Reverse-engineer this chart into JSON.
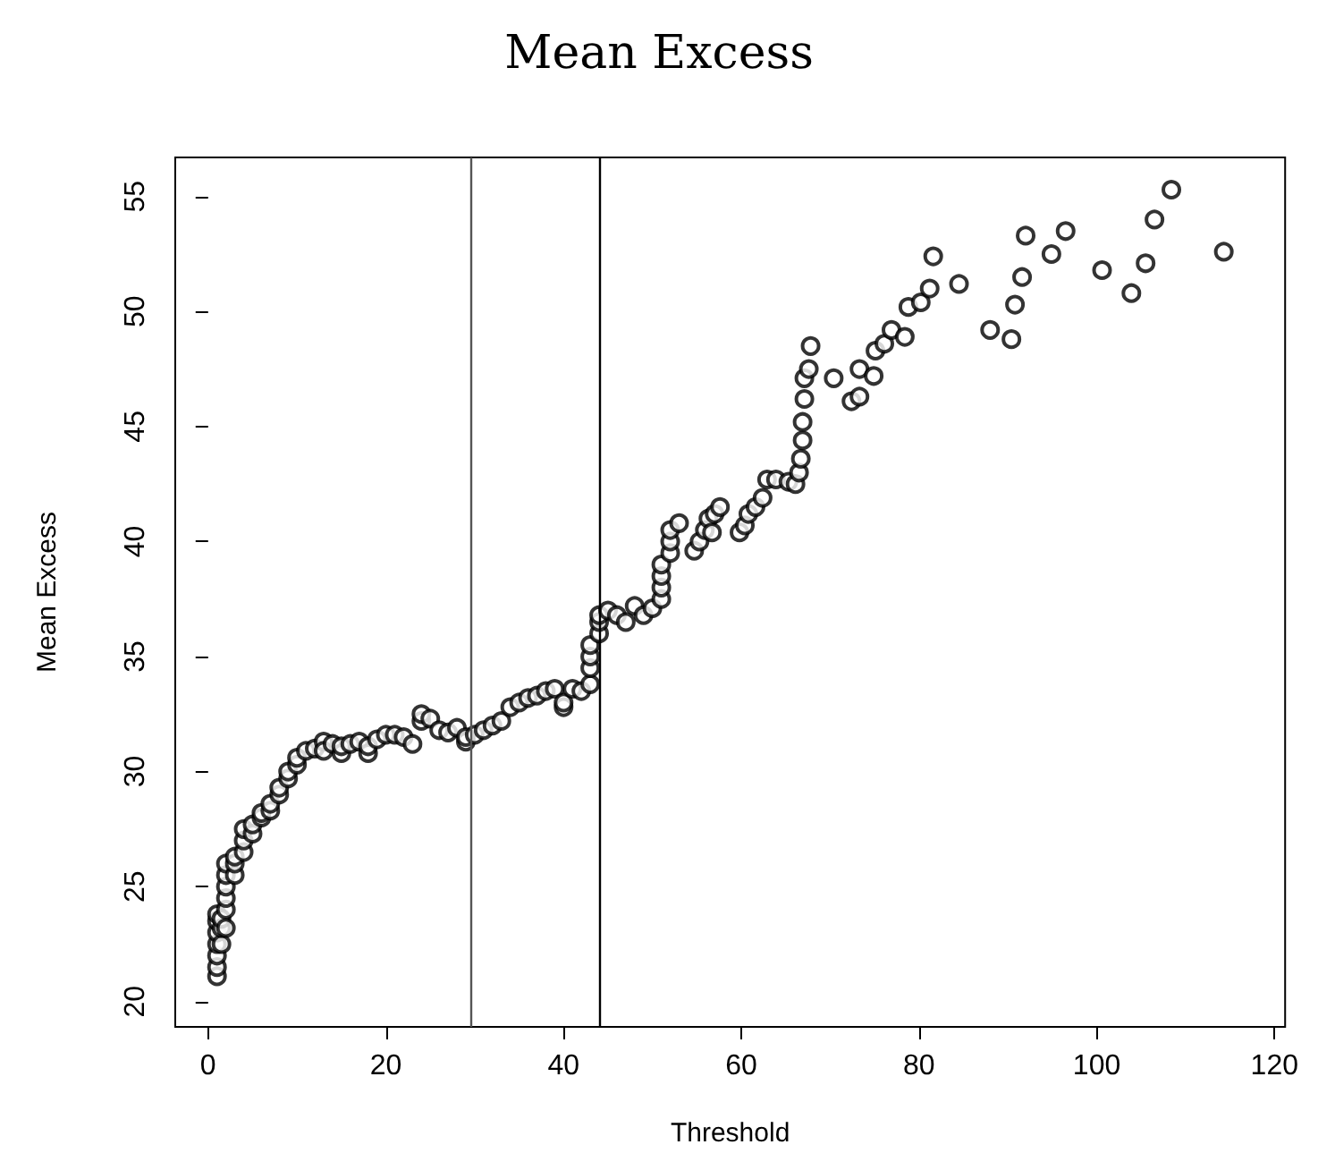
{
  "chart_data": {
    "type": "scatter",
    "title": "Mean Excess",
    "xlabel": "Threshold",
    "ylabel": "Mean Excess",
    "xlim": [
      -3.7,
      121.2
    ],
    "ylim": [
      18.9,
      56.7
    ],
    "xticks": [
      0,
      20,
      40,
      60,
      80,
      100,
      120
    ],
    "yticks": [
      20,
      25,
      30,
      35,
      40,
      45,
      50,
      55
    ],
    "grid": false,
    "marker": "circle",
    "ref_lines": [
      {
        "axis": "x",
        "value": 29.5,
        "color": "#555555"
      },
      {
        "axis": "x",
        "value": 44,
        "color": "#000000"
      }
    ],
    "series": [
      {
        "color": "#000000",
        "x": [
          1,
          1,
          1,
          1,
          1,
          1,
          1,
          1.5,
          1.5,
          1.5,
          2,
          2,
          2,
          2,
          2,
          2,
          3,
          3,
          3,
          4,
          4,
          4,
          5,
          5,
          6,
          6,
          7,
          7,
          8,
          8,
          9,
          9,
          10,
          10,
          11,
          12,
          13,
          13,
          14,
          15,
          15,
          16,
          17,
          18,
          18,
          19,
          20,
          21,
          22,
          23,
          24,
          24,
          25,
          26,
          27,
          28,
          29,
          29,
          30,
          31,
          32,
          33,
          34,
          35,
          36,
          37,
          38,
          39,
          40,
          40,
          41,
          42,
          43,
          43,
          43,
          43,
          44,
          44,
          44,
          45,
          46,
          47,
          48,
          49,
          50,
          51,
          51,
          51,
          51,
          52,
          52,
          52,
          53,
          54.7,
          55.3,
          55.9,
          56.3,
          56.7,
          57,
          57.6,
          59.8,
          60.4,
          60.8,
          61.6,
          62.4,
          62.9,
          63.9,
          65.3,
          66.1,
          66.5,
          66.7,
          66.9,
          66.9,
          67.1,
          67.1,
          67.6,
          67.8,
          70.4,
          72.4,
          73.3,
          73.3,
          74.9,
          75.1,
          76.1,
          76.9,
          78.4,
          78.8,
          80.2,
          81.2,
          81.6,
          84.5,
          88,
          90.4,
          90.8,
          91.6,
          92,
          94.9,
          96.5,
          100.6,
          103.9,
          105.5,
          106.5,
          108.4,
          114.3
        ],
        "values": [
          21.1,
          21.5,
          22,
          22.5,
          23,
          23.5,
          23.8,
          22.5,
          23.2,
          23.6,
          23.2,
          24,
          24.5,
          25,
          25.5,
          26,
          25.5,
          26,
          26.3,
          26.5,
          27,
          27.5,
          27.3,
          27.7,
          28,
          28.2,
          28.3,
          28.6,
          29,
          29.3,
          29.7,
          30,
          30.3,
          30.6,
          30.9,
          31,
          31.3,
          30.9,
          31.2,
          30.8,
          31.1,
          31.2,
          31.3,
          30.8,
          31.1,
          31.4,
          31.6,
          31.6,
          31.5,
          31.2,
          32.2,
          32.5,
          32.3,
          31.8,
          31.7,
          31.9,
          31.3,
          31.5,
          31.6,
          31.8,
          32,
          32.2,
          32.8,
          33,
          33.2,
          33.3,
          33.5,
          33.6,
          32.8,
          33,
          33.6,
          33.5,
          33.8,
          34.5,
          35,
          35.5,
          36,
          36.5,
          36.8,
          37,
          36.8,
          36.5,
          37.2,
          36.8,
          37.1,
          37.5,
          38,
          38.5,
          39,
          39.5,
          40,
          40.5,
          40.8,
          39.6,
          40,
          40.5,
          41,
          40.4,
          41.2,
          41.5,
          40.4,
          40.7,
          41.2,
          41.5,
          41.9,
          42.7,
          42.7,
          42.6,
          42.5,
          43,
          43.6,
          44.4,
          45.2,
          46.2,
          47.1,
          47.5,
          48.5,
          47.1,
          46.1,
          46.3,
          47.5,
          47.2,
          48.3,
          48.6,
          49.2,
          48.9,
          50.2,
          50.4,
          51,
          52.4,
          51.2,
          49.2,
          48.8,
          50.3,
          51.5,
          53.3,
          52.5,
          53.5,
          51.8,
          50.8,
          52.1,
          54,
          55.3,
          52.6
        ]
      }
    ]
  }
}
